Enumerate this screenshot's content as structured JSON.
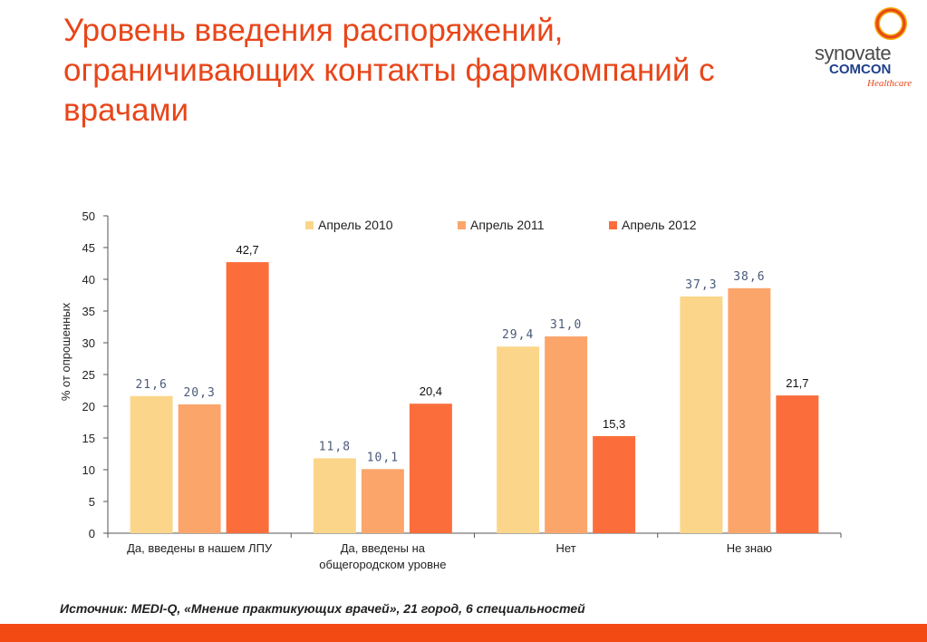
{
  "slide": {
    "title": "Уровень введения распоряжений, ограничивающих контакты фармкомпаний с врачами",
    "source": "Источник:  MEDI-Q, «Мнение практикующих врачей», 21 город, 6 специальностей"
  },
  "logo": {
    "name": "synovate",
    "brand": "COMCON",
    "sub": "Healthcare"
  },
  "chart_data": {
    "type": "bar",
    "categories": [
      [
        "Да, введены в нашем ЛПУ"
      ],
      [
        "Да, введены на",
        "общегородском уровне"
      ],
      [
        "Нет"
      ],
      [
        "Не знаю"
      ]
    ],
    "series": [
      {
        "name": "Апрель 2010",
        "color": "#fbd68a",
        "values": [
          21.6,
          11.8,
          29.4,
          37.3
        ],
        "labels": [
          "21,6",
          "11,8",
          "29,4",
          "37,3"
        ]
      },
      {
        "name": "Апрель 2011",
        "color": "#fca56b",
        "values": [
          20.3,
          10.1,
          31.0,
          38.6
        ],
        "labels": [
          "20,3",
          "10,1",
          "31,0",
          "38,6"
        ]
      },
      {
        "name": "Апрель 2012",
        "color": "#fb6e3c",
        "values": [
          42.7,
          20.4,
          15.3,
          21.7
        ],
        "labels": [
          "42,7",
          "20,4",
          "15,3",
          "21,7"
        ]
      }
    ],
    "ylabel": "% от опрошенных",
    "ylim": [
      0,
      50
    ],
    "yticks": [
      0,
      5,
      10,
      15,
      20,
      25,
      30,
      35,
      40,
      45,
      50
    ],
    "grid": false,
    "legend": "top"
  }
}
